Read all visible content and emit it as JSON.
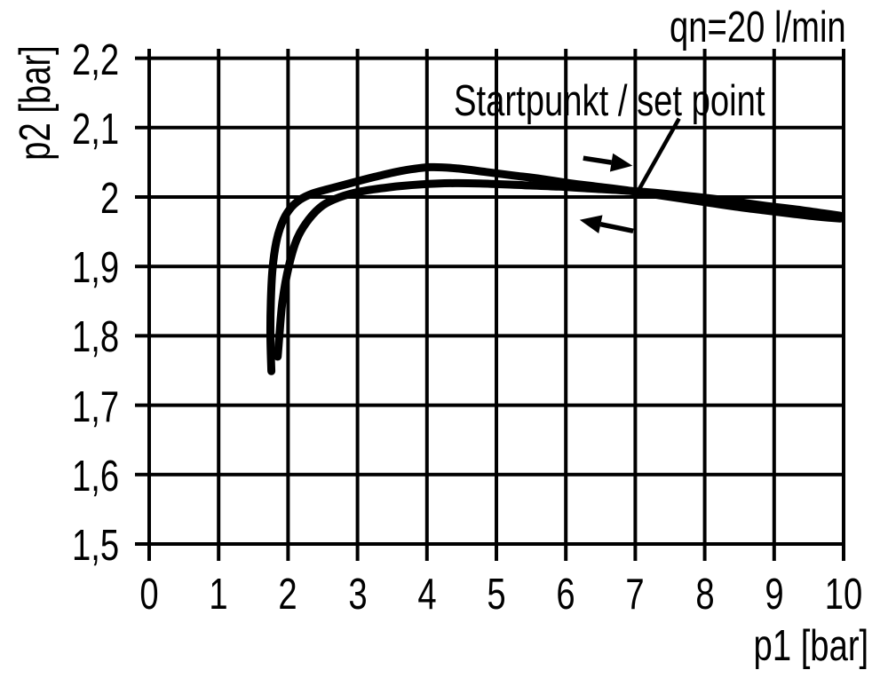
{
  "labels": {
    "flow_rate": "qn=20 l/min",
    "annotation": "Startpunkt / set point"
  },
  "chart_data": {
    "type": "line",
    "title": "",
    "flow_condition_label": "qn=20 l/min",
    "annotation_label": "Startpunkt / set point",
    "xlabel": "p1 [bar]",
    "ylabel": "p2 [bar]",
    "xlim": [
      0,
      10
    ],
    "ylim": [
      1.5,
      2.2
    ],
    "grid": true,
    "legend": "none",
    "line_color": "#000000",
    "x_ticks": [
      {
        "v": 0,
        "label": "0"
      },
      {
        "v": 1,
        "label": "1"
      },
      {
        "v": 2,
        "label": "2"
      },
      {
        "v": 3,
        "label": "3"
      },
      {
        "v": 4,
        "label": "4"
      },
      {
        "v": 5,
        "label": "5"
      },
      {
        "v": 6,
        "label": "6"
      },
      {
        "v": 7,
        "label": "7"
      },
      {
        "v": 8,
        "label": "8"
      },
      {
        "v": 9,
        "label": "9"
      },
      {
        "v": 10,
        "label": "10"
      }
    ],
    "y_ticks": [
      {
        "v": 1.5,
        "label": "1,5"
      },
      {
        "v": 1.6,
        "label": "1,6"
      },
      {
        "v": 1.7,
        "label": "1,7"
      },
      {
        "v": 1.8,
        "label": "1,8"
      },
      {
        "v": 1.9,
        "label": "1,9"
      },
      {
        "v": 2.0,
        "label": "2"
      },
      {
        "v": 2.1,
        "label": "2,1"
      },
      {
        "v": 2.2,
        "label": "2,2"
      }
    ],
    "series": [
      {
        "name": "increasing-p1",
        "direction": "increasing",
        "points": [
          [
            1.76,
            1.749
          ],
          [
            1.745,
            1.8
          ],
          [
            1.752,
            1.85
          ],
          [
            1.775,
            1.895
          ],
          [
            1.83,
            1.935
          ],
          [
            1.91,
            1.962
          ],
          [
            2.02,
            1.982
          ],
          [
            2.17,
            1.996
          ],
          [
            2.35,
            2.005
          ],
          [
            2.6,
            2.012
          ],
          [
            2.9,
            2.02
          ],
          [
            3.25,
            2.029
          ],
          [
            3.65,
            2.038
          ],
          [
            4.05,
            2.043
          ],
          [
            4.45,
            2.041
          ],
          [
            4.85,
            2.036
          ],
          [
            5.25,
            2.031
          ],
          [
            5.65,
            2.026
          ],
          [
            6.05,
            2.02
          ],
          [
            6.45,
            2.015
          ],
          [
            6.85,
            2.01
          ],
          [
            7.25,
            2.004
          ],
          [
            7.65,
            1.998
          ],
          [
            8.05,
            1.992
          ],
          [
            8.45,
            1.986
          ],
          [
            8.85,
            1.981
          ],
          [
            9.25,
            1.976
          ],
          [
            9.6,
            1.972
          ],
          [
            9.95,
            1.969
          ]
        ]
      },
      {
        "name": "decreasing-p1",
        "direction": "decreasing",
        "points": [
          [
            1.85,
            1.77
          ],
          [
            1.875,
            1.8
          ],
          [
            1.92,
            1.85
          ],
          [
            2.01,
            1.9
          ],
          [
            2.13,
            1.94
          ],
          [
            2.3,
            1.968
          ],
          [
            2.5,
            1.988
          ],
          [
            2.75,
            2.0
          ],
          [
            3.05,
            2.008
          ],
          [
            3.45,
            2.014
          ],
          [
            3.9,
            2.018
          ],
          [
            4.4,
            2.02
          ],
          [
            4.9,
            2.019
          ],
          [
            5.4,
            2.017
          ],
          [
            5.9,
            2.015
          ],
          [
            6.4,
            2.012
          ],
          [
            6.9,
            2.009
          ],
          [
            7.4,
            2.005
          ],
          [
            7.9,
            2.0
          ],
          [
            8.4,
            1.994
          ],
          [
            8.9,
            1.987
          ],
          [
            9.4,
            1.981
          ],
          [
            9.95,
            1.973
          ]
        ]
      }
    ],
    "annotations": {
      "set_point_leader": {
        "from": [
          7.63,
          2.113
        ],
        "to": [
          7.06,
          2.012
        ]
      },
      "direction_arrows": [
        {
          "name": "arrow-right",
          "from": [
            6.25,
            2.056
          ],
          "to": [
            6.96,
            2.045
          ]
        },
        {
          "name": "arrow-left",
          "from": [
            6.97,
            1.951
          ],
          "to": [
            6.2,
            1.967
          ]
        }
      ]
    }
  }
}
